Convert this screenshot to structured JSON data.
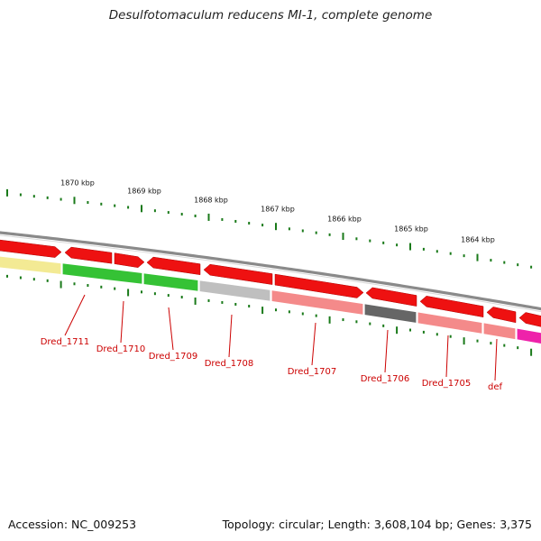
{
  "title": "Desulfotomaculum reducens MI-1, complete genome",
  "footer": {
    "accession": "Accession: NC_009253",
    "summary": "Topology: circular; Length: 3,608,104 bp; Genes: 3,375"
  },
  "ticks": [
    "1870 kbp",
    "1869 kbp",
    "1868 kbp",
    "1867 kbp",
    "1866 kbp",
    "1865 kbp",
    "1864 kbp"
  ],
  "genes": [
    {
      "label": "Dred_1711",
      "color": "#f3ea94"
    },
    {
      "label": "Dred_1710",
      "color": "#35c235"
    },
    {
      "label": "Dred_1709",
      "color": "#35c235"
    },
    {
      "label": "Dred_1708",
      "color": "#bfbfbf"
    },
    {
      "label": "Dred_1707",
      "color": "#f48a8a"
    },
    {
      "label": "Dred_1706",
      "color": "#666666"
    },
    {
      "label": "Dred_1705",
      "color": "#f48a8a"
    },
    {
      "label": "def",
      "color": "#f48a8a"
    }
  ],
  "colors": {
    "cds": "#ee1111",
    "backbone": "#8a8a8a",
    "tick": "#1a7a1a",
    "label": "#cc0000",
    "extra_segment": "#ee22aa"
  }
}
